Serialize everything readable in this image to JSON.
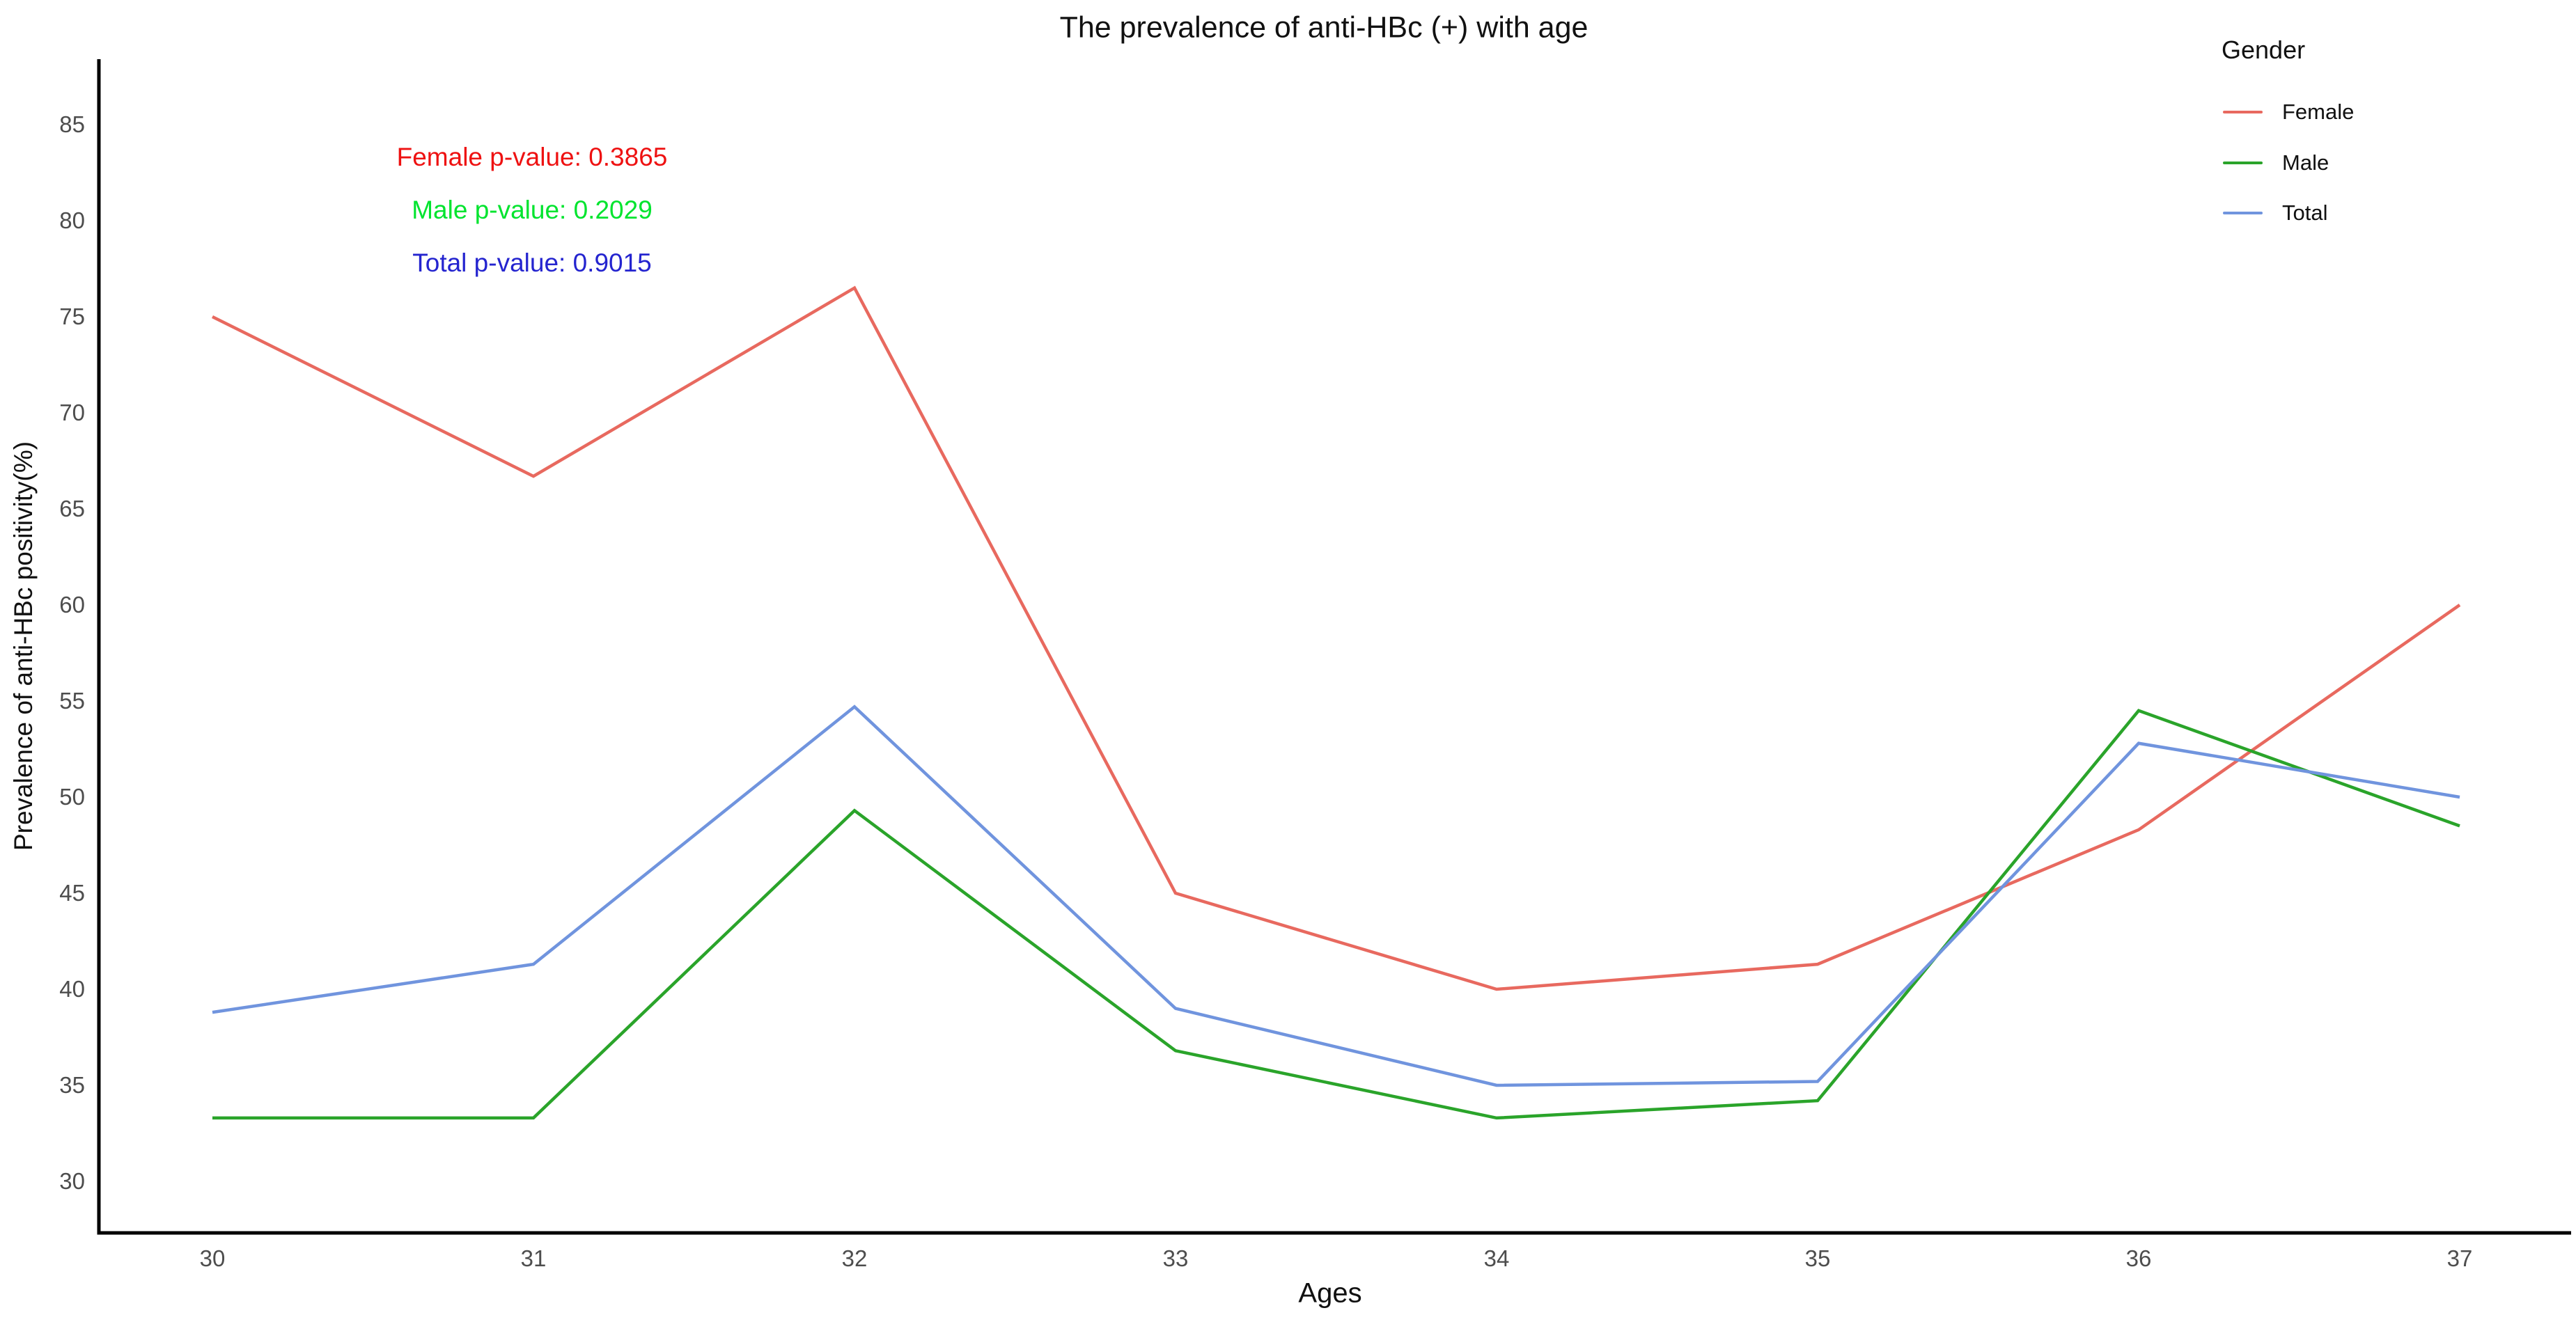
{
  "page": {
    "background": "#ffffff"
  },
  "chart_data": {
    "type": "line",
    "title": "The prevalence of anti-HBc (+) with age",
    "xlabel": "Ages",
    "ylabel": "Prevalence of anti-HBc positivity(%)",
    "categories": [
      "30",
      "31",
      "32",
      "33",
      "34",
      "35",
      "36",
      "37"
    ],
    "y_ticks": [
      30,
      35,
      40,
      45,
      50,
      55,
      60,
      65,
      70,
      75,
      80,
      85
    ],
    "ylim": [
      27.5,
      88.5
    ],
    "grid": false,
    "legend_position": "top-right",
    "legend_title": "Gender",
    "series": [
      {
        "name": "Female",
        "color": "#e8695f",
        "values": [
          75.0,
          66.7,
          76.5,
          45.0,
          40.0,
          41.3,
          48.3,
          60.0
        ]
      },
      {
        "name": "Male",
        "color": "#2aa42a",
        "values": [
          33.3,
          33.3,
          49.3,
          36.8,
          33.3,
          34.2,
          54.5,
          48.5
        ]
      },
      {
        "name": "Total",
        "color": "#7094de",
        "values": [
          38.8,
          41.3,
          54.7,
          39.0,
          35.0,
          35.2,
          52.8,
          50.0
        ]
      }
    ]
  },
  "annotations": [
    {
      "text": "Female p-value: 0.3865",
      "color": "#ee1111"
    },
    {
      "text": "Male p-value: 0.2029",
      "color": "#00e42e"
    },
    {
      "text": "Total p-value: 0.9015",
      "color": "#2424cf"
    }
  ],
  "axis": {
    "line_color": "#000000",
    "tick_label_color": "#4d4d4d"
  }
}
